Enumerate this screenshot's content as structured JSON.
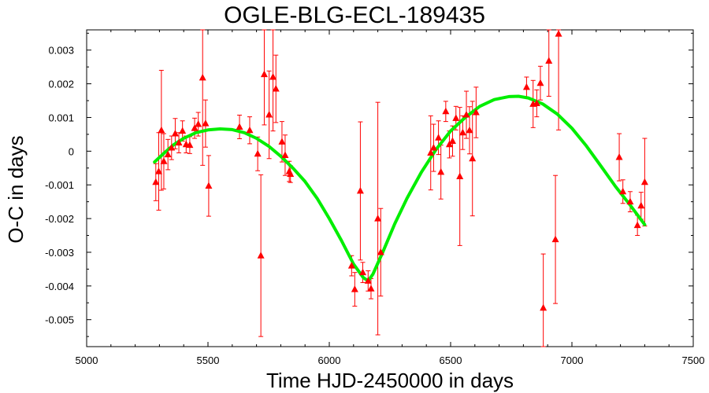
{
  "chart_data": {
    "type": "scatter",
    "title": "OGLE-BLG-ECL-189435",
    "xlabel": "Time HJD-2450000 in days",
    "ylabel": "O-C in days",
    "xlim": [
      5000,
      7500
    ],
    "ylim": [
      -0.0058,
      0.0036
    ],
    "xticks": [
      5000,
      5500,
      6000,
      6500,
      7000,
      7500
    ],
    "xtick_labels": [
      "5000",
      "5500",
      "6000",
      "6500",
      "7000",
      "7500"
    ],
    "yticks": [
      0.003,
      0.002,
      0.001,
      0,
      -0.001,
      -0.002,
      -0.003,
      -0.004,
      -0.005
    ],
    "ytick_labels": [
      "0.003",
      "0.002",
      "0.001",
      "0",
      "-0.001",
      "-0.002",
      "-0.003",
      "-0.004",
      "-0.005"
    ],
    "grid": false,
    "series": [
      {
        "marker": "triangle",
        "color": "#ff0000",
        "points": [
          {
            "x": 5285,
            "y": -0.00092,
            "err": 0.00055
          },
          {
            "x": 5297,
            "y": -0.0006,
            "err": 0.00115
          },
          {
            "x": 5308,
            "y": 0.00062,
            "err": 0.00178
          },
          {
            "x": 5318,
            "y": -0.0003,
            "err": 0.00082
          },
          {
            "x": 5335,
            "y": -0.0001,
            "err": 0.00045
          },
          {
            "x": 5350,
            "y": 0.0001,
            "err": 0.00035
          },
          {
            "x": 5365,
            "y": 0.00052,
            "err": 0.00045
          },
          {
            "x": 5380,
            "y": 0.00025,
            "err": 0.0003
          },
          {
            "x": 5395,
            "y": 0.0006,
            "err": 0.0003
          },
          {
            "x": 5410,
            "y": 0.0002,
            "err": 0.00025
          },
          {
            "x": 5425,
            "y": 0.00018,
            "err": 0.00025
          },
          {
            "x": 5445,
            "y": 0.00068,
            "err": 0.0003
          },
          {
            "x": 5460,
            "y": 0.0008,
            "err": 0.00035
          },
          {
            "x": 5478,
            "y": 0.00218,
            "err": 0.0026
          },
          {
            "x": 5490,
            "y": 0.00082,
            "err": 0.0007
          },
          {
            "x": 5503,
            "y": -0.00103,
            "err": 0.0009
          },
          {
            "x": 5630,
            "y": 0.00072,
            "err": 0.00035
          },
          {
            "x": 5672,
            "y": 0.00062,
            "err": 0.0004
          },
          {
            "x": 5705,
            "y": -8e-05,
            "err": 0.0005
          },
          {
            "x": 5718,
            "y": -0.0031,
            "err": 0.0024
          },
          {
            "x": 5732,
            "y": 0.00228,
            "err": 0.0015
          },
          {
            "x": 5752,
            "y": 0.00108,
            "err": 0.0013
          },
          {
            "x": 5768,
            "y": 0.0022,
            "err": 0.0016
          },
          {
            "x": 5780,
            "y": 0.00185,
            "err": 0.001
          },
          {
            "x": 5805,
            "y": 0.00028,
            "err": 0.0006
          },
          {
            "x": 5818,
            "y": -0.00012,
            "err": 0.0006
          },
          {
            "x": 5835,
            "y": -0.0006,
            "err": 0.0003
          },
          {
            "x": 5840,
            "y": -0.00068,
            "err": 0.00025
          },
          {
            "x": 6092,
            "y": -0.0034,
            "err": 0.0003
          },
          {
            "x": 6105,
            "y": -0.0041,
            "err": 0.0005
          },
          {
            "x": 6128,
            "y": -0.00118,
            "err": 0.00205
          },
          {
            "x": 6138,
            "y": -0.0036,
            "err": 0.0003
          },
          {
            "x": 6160,
            "y": -0.00385,
            "err": 0.0003
          },
          {
            "x": 6172,
            "y": -0.00408,
            "err": 0.0003
          },
          {
            "x": 6200,
            "y": -0.002,
            "err": 0.00345
          },
          {
            "x": 6212,
            "y": -0.003,
            "err": 0.0013
          },
          {
            "x": 6418,
            "y": -5e-05,
            "err": 0.0011
          },
          {
            "x": 6430,
            "y": 0.0001,
            "err": 0.0007
          },
          {
            "x": 6450,
            "y": 0.0004,
            "err": 0.0005
          },
          {
            "x": 6460,
            "y": -0.00062,
            "err": 0.0008
          },
          {
            "x": 6480,
            "y": 0.00118,
            "err": 0.0003
          },
          {
            "x": 6495,
            "y": 0.0002,
            "err": 0.0004
          },
          {
            "x": 6508,
            "y": 0.0003,
            "err": 0.00045
          },
          {
            "x": 6522,
            "y": 0.00098,
            "err": 0.00035
          },
          {
            "x": 6538,
            "y": -0.00075,
            "err": 0.00205
          },
          {
            "x": 6550,
            "y": 0.00055,
            "err": 0.0005
          },
          {
            "x": 6565,
            "y": 0.00108,
            "err": 0.0007
          },
          {
            "x": 6578,
            "y": 0.00062,
            "err": 0.0007
          },
          {
            "x": 6590,
            "y": -0.00022,
            "err": 0.0017
          },
          {
            "x": 6605,
            "y": 0.00115,
            "err": 0.00075
          },
          {
            "x": 6813,
            "y": 0.0019,
            "err": 0.0003
          },
          {
            "x": 6840,
            "y": 0.0014,
            "err": 0.0007
          },
          {
            "x": 6855,
            "y": 0.00142,
            "err": 0.0004
          },
          {
            "x": 6870,
            "y": 0.00202,
            "err": 0.0005
          },
          {
            "x": 6882,
            "y": -0.00465,
            "err": 0.0016
          },
          {
            "x": 6905,
            "y": 0.00268,
            "err": 0.00105
          },
          {
            "x": 6932,
            "y": -0.00262,
            "err": 0.0019
          },
          {
            "x": 6945,
            "y": 0.00348,
            "err": 0.00285
          },
          {
            "x": 7195,
            "y": -0.00018,
            "err": 0.0007
          },
          {
            "x": 7210,
            "y": -0.0012,
            "err": 0.00035
          },
          {
            "x": 7240,
            "y": -0.0015,
            "err": 0.0003
          },
          {
            "x": 7270,
            "y": -0.0022,
            "err": 0.0003
          },
          {
            "x": 7285,
            "y": -0.00162,
            "err": 0.0004
          },
          {
            "x": 7300,
            "y": -0.00092,
            "err": 0.0013
          }
        ]
      },
      {
        "type": "line",
        "color": "#00ee00",
        "points": [
          {
            "x": 5280,
            "y": -0.00032
          },
          {
            "x": 5320,
            "y": -5e-05
          },
          {
            "x": 5360,
            "y": 0.0002
          },
          {
            "x": 5400,
            "y": 0.00038
          },
          {
            "x": 5450,
            "y": 0.00055
          },
          {
            "x": 5500,
            "y": 0.00063
          },
          {
            "x": 5550,
            "y": 0.00066
          },
          {
            "x": 5600,
            "y": 0.00064
          },
          {
            "x": 5650,
            "y": 0.00055
          },
          {
            "x": 5700,
            "y": 0.00038
          },
          {
            "x": 5750,
            "y": 0.00015
          },
          {
            "x": 5800,
            "y": -0.00015
          },
          {
            "x": 5850,
            "y": -0.0005
          },
          {
            "x": 5900,
            "y": -0.0009
          },
          {
            "x": 5950,
            "y": -0.0014
          },
          {
            "x": 6000,
            "y": -0.002
          },
          {
            "x": 6050,
            "y": -0.00265
          },
          {
            "x": 6100,
            "y": -0.00335
          },
          {
            "x": 6140,
            "y": -0.00375
          },
          {
            "x": 6160,
            "y": -0.00385
          },
          {
            "x": 6180,
            "y": -0.00365
          },
          {
            "x": 6220,
            "y": -0.003
          },
          {
            "x": 6270,
            "y": -0.00215
          },
          {
            "x": 6320,
            "y": -0.0014
          },
          {
            "x": 6380,
            "y": -0.00062
          },
          {
            "x": 6440,
            "y": 5e-05
          },
          {
            "x": 6500,
            "y": 0.0006
          },
          {
            "x": 6560,
            "y": 0.001
          },
          {
            "x": 6620,
            "y": 0.00133
          },
          {
            "x": 6680,
            "y": 0.00153
          },
          {
            "x": 6740,
            "y": 0.00162
          },
          {
            "x": 6780,
            "y": 0.00163
          },
          {
            "x": 6820,
            "y": 0.00158
          },
          {
            "x": 6880,
            "y": 0.0014
          },
          {
            "x": 6940,
            "y": 0.0011
          },
          {
            "x": 7000,
            "y": 0.00068
          },
          {
            "x": 7060,
            "y": 0.00015
          },
          {
            "x": 7120,
            "y": -0.00045
          },
          {
            "x": 7180,
            "y": -0.00105
          },
          {
            "x": 7240,
            "y": -0.0016
          },
          {
            "x": 7300,
            "y": -0.00218
          }
        ]
      }
    ]
  }
}
